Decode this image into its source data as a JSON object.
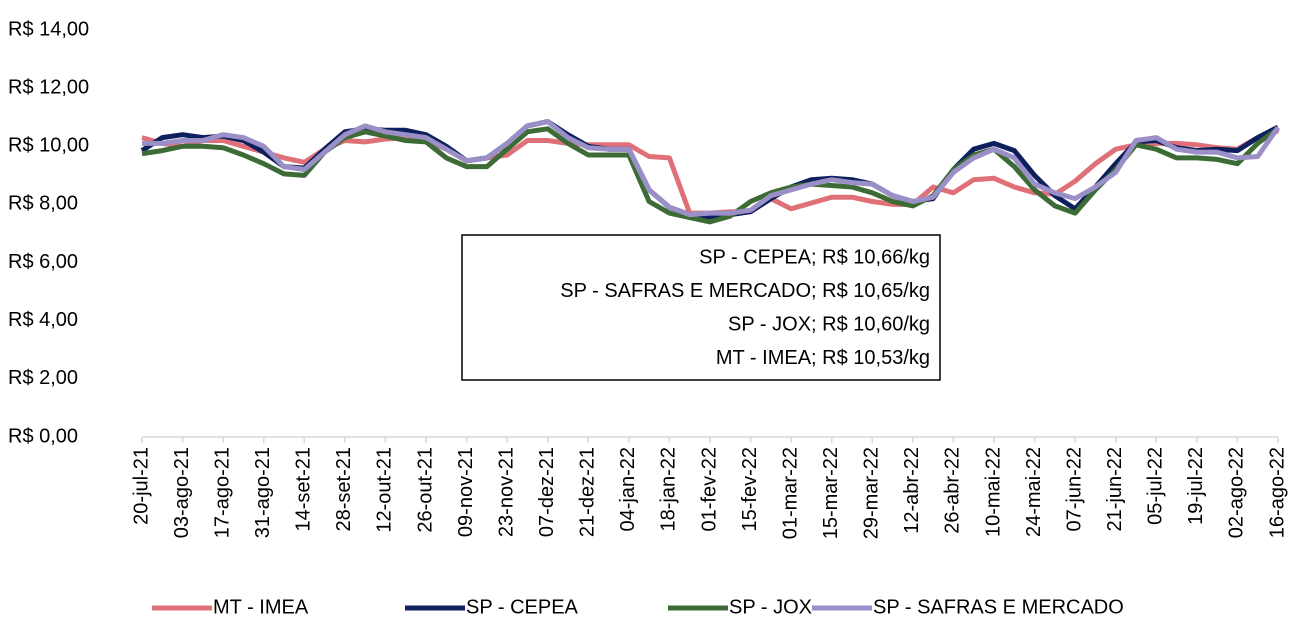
{
  "chart_data": {
    "type": "line",
    "categories": [
      "20-jul-21",
      null,
      "03-ago-21",
      null,
      "17-ago-21",
      null,
      "31-ago-21",
      null,
      "14-set-21",
      null,
      "28-set-21",
      null,
      "12-out-21",
      null,
      "26-out-21",
      null,
      "09-nov-21",
      null,
      "23-nov-21",
      null,
      "07-dez-21",
      null,
      "21-dez-21",
      null,
      "04-jan-22",
      null,
      "18-jan-22",
      null,
      "01-fev-22",
      null,
      "15-fev-22",
      null,
      "01-mar-22",
      null,
      "15-mar-22",
      null,
      "29-mar-22",
      null,
      "12-abr-22",
      null,
      "26-abr-22",
      null,
      "10-mai-22",
      null,
      "24-mai-22",
      null,
      "07-jun-22",
      null,
      "21-jun-22",
      null,
      "05-jul-22",
      null,
      "19-jul-22",
      null,
      "02-ago-22",
      null,
      "16-ago-22"
    ],
    "series": [
      {
        "name": "MT - IMEA",
        "color": "#e07078",
        "values": [
          10.3,
          10.1,
          10.0,
          10.2,
          10.2,
          10.0,
          9.8,
          9.6,
          9.45,
          9.9,
          10.2,
          10.15,
          10.25,
          10.3,
          10.2,
          9.9,
          9.5,
          9.6,
          9.7,
          10.2,
          10.2,
          10.1,
          10.05,
          10.05,
          10.05,
          9.65,
          9.6,
          7.7,
          7.7,
          7.75,
          7.75,
          8.2,
          7.85,
          8.05,
          8.25,
          8.25,
          8.1,
          8.0,
          8.0,
          8.6,
          8.4,
          8.85,
          8.9,
          8.6,
          8.4,
          8.35,
          8.8,
          9.4,
          9.9,
          10.05,
          10.1,
          10.1,
          10.05,
          9.95,
          9.9,
          10.3,
          10.53
        ]
      },
      {
        "name": "SP - CEPEA",
        "color": "#0d1f5c",
        "values": [
          9.85,
          10.3,
          10.4,
          10.3,
          10.35,
          10.2,
          9.8,
          9.3,
          9.25,
          9.9,
          10.5,
          10.6,
          10.55,
          10.55,
          10.4,
          10.0,
          9.5,
          9.6,
          10.1,
          10.7,
          10.85,
          10.4,
          10.0,
          9.9,
          9.9,
          8.5,
          7.9,
          7.65,
          7.55,
          7.65,
          7.75,
          8.2,
          8.6,
          8.85,
          8.9,
          8.85,
          8.7,
          8.3,
          8.1,
          8.2,
          9.2,
          9.9,
          10.1,
          9.85,
          9.0,
          8.3,
          7.85,
          8.6,
          9.4,
          10.15,
          10.2,
          9.95,
          9.85,
          9.9,
          9.85,
          10.3,
          10.66
        ]
      },
      {
        "name": "SP - JOX",
        "color": "#3d6b35",
        "values": [
          9.75,
          9.85,
          10.0,
          10.0,
          9.95,
          9.7,
          9.4,
          9.05,
          9.0,
          9.8,
          10.3,
          10.5,
          10.35,
          10.2,
          10.15,
          9.6,
          9.3,
          9.3,
          9.9,
          10.5,
          10.6,
          10.1,
          9.7,
          9.7,
          9.7,
          8.1,
          7.7,
          7.55,
          7.4,
          7.6,
          8.1,
          8.4,
          8.6,
          8.7,
          8.65,
          8.6,
          8.4,
          8.1,
          7.95,
          8.3,
          9.2,
          9.7,
          9.9,
          9.3,
          8.5,
          7.95,
          7.7,
          8.5,
          9.2,
          10.05,
          9.9,
          9.6,
          9.6,
          9.55,
          9.4,
          10.1,
          10.6
        ]
      },
      {
        "name": "SP - SAFRAS E MERCADO",
        "color": "#9b8fc8",
        "values": [
          10.1,
          10.1,
          10.2,
          10.2,
          10.4,
          10.3,
          10.0,
          9.3,
          9.2,
          9.8,
          10.4,
          10.7,
          10.5,
          10.4,
          10.3,
          9.9,
          9.5,
          9.6,
          10.1,
          10.7,
          10.85,
          10.3,
          9.95,
          9.9,
          9.9,
          8.5,
          7.9,
          7.65,
          7.7,
          7.7,
          7.8,
          8.3,
          8.5,
          8.7,
          8.85,
          8.75,
          8.7,
          8.3,
          8.1,
          8.25,
          9.1,
          9.6,
          9.9,
          9.6,
          8.7,
          8.4,
          8.2,
          8.6,
          9.1,
          10.2,
          10.3,
          9.9,
          9.8,
          9.8,
          9.6,
          9.65,
          10.65
        ]
      }
    ],
    "ylim": [
      0,
      14
    ],
    "yticks": [
      {
        "value": 0,
        "label": "R$ 0,00"
      },
      {
        "value": 2,
        "label": "R$ 2,00"
      },
      {
        "value": 4,
        "label": "R$ 4,00"
      },
      {
        "value": 6,
        "label": "R$ 6,00"
      },
      {
        "value": 8,
        "label": "R$ 8,00"
      },
      {
        "value": 10,
        "label": "R$ 10,00"
      },
      {
        "value": 12,
        "label": "R$ 12,00"
      },
      {
        "value": 14,
        "label": "R$ 14,00"
      }
    ],
    "grid": false,
    "legend": "bottom",
    "annotations": [
      "SP - CEPEA; R$ 10,66/kg",
      "SP - SAFRAS E MERCADO; R$ 10,65/kg",
      "SP - JOX; R$ 10,60/kg",
      "MT - IMEA; R$ 10,53/kg"
    ]
  }
}
